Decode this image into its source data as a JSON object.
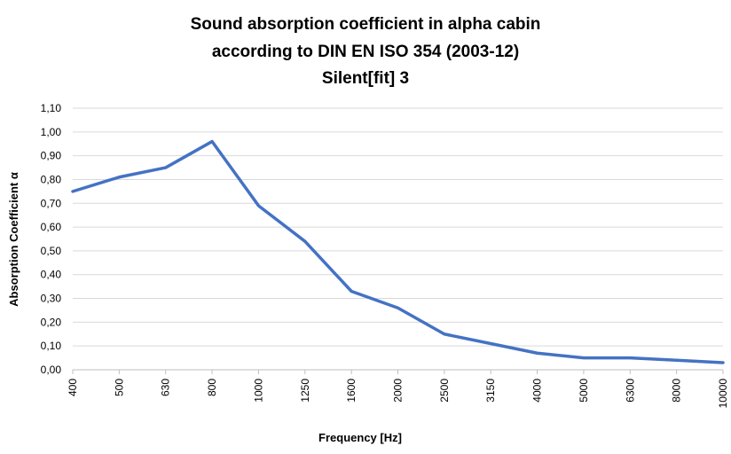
{
  "chart_data": {
    "type": "line",
    "title_lines": [
      "Sound absorption coefficient in alpha cabin",
      "according to DIN EN ISO 354 (2003-12)",
      "Silent[fit] 3"
    ],
    "xlabel": "Frequency [Hz]",
    "ylabel": "Absorption Coefficient α",
    "categories": [
      "400",
      "500",
      "630",
      "800",
      "1000",
      "1250",
      "1600",
      "2000",
      "2500",
      "3150",
      "4000",
      "5000",
      "6300",
      "8000",
      "10000"
    ],
    "series": [
      {
        "values": [
          0.75,
          0.81,
          0.85,
          0.96,
          0.69,
          0.54,
          0.33,
          0.26,
          0.15,
          0.11,
          0.07,
          0.05,
          0.05,
          0.04,
          0.03
        ],
        "color": "#4472C4"
      }
    ],
    "ylim": [
      0,
      1.1
    ],
    "yticks": [
      "0,00",
      "0,10",
      "0,20",
      "0,30",
      "0,40",
      "0,50",
      "0,60",
      "0,70",
      "0,80",
      "0,90",
      "1,00",
      "1,10"
    ],
    "grid": true,
    "gridColor": "#d9d9d9",
    "axisColor": "#bfbfbf"
  }
}
